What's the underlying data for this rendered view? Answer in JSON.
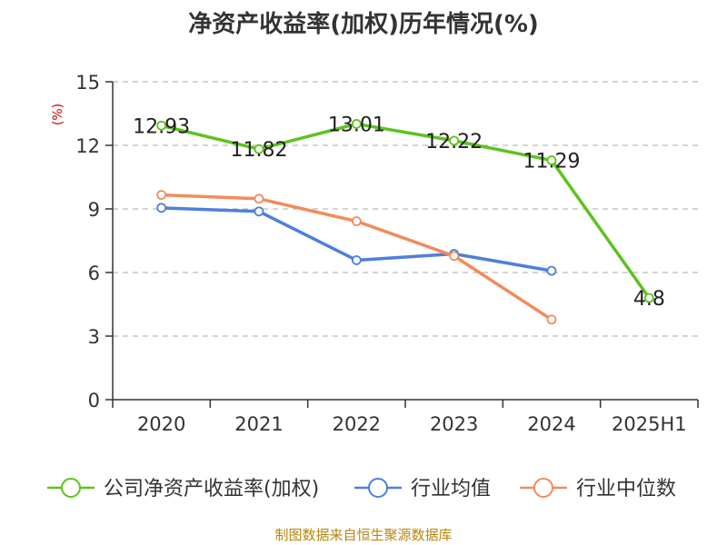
{
  "title": "净资产收益率(加权)历年情况(%)",
  "source_note": "制图数据来自恒生聚源数据库",
  "colors": {
    "roe": "#5cc31f",
    "industry_avg": "#4e7fdb",
    "industry_median": "#f28b5c",
    "unit": "#cc0000",
    "grid": "#bbbbbb"
  },
  "chart_data": {
    "type": "line",
    "title": "净资产收益率(加权)历年情况(%)",
    "ylabel": "(%)",
    "xlabel": "",
    "categories": [
      "2020",
      "2021",
      "2022",
      "2023",
      "2024",
      "2025H1"
    ],
    "ylim": [
      0,
      15
    ],
    "yticks": [
      0,
      3,
      6,
      9,
      12,
      15
    ],
    "grid": true,
    "legend_position": "bottom",
    "series": [
      {
        "name": "公司净资产收益率(加权)",
        "color": "#5cc31f",
        "values": [
          12.93,
          11.82,
          13.01,
          12.22,
          11.29,
          4.8
        ],
        "labels": [
          "12.93",
          "11.82",
          "13.01",
          "12.22",
          "11.29",
          "4.8"
        ]
      },
      {
        "name": "行业均值",
        "color": "#4e7fdb",
        "values": [
          9.05,
          8.88,
          6.58,
          6.88,
          6.08,
          null
        ]
      },
      {
        "name": "行业中位数",
        "color": "#f28b5c",
        "values": [
          9.66,
          9.48,
          8.42,
          6.78,
          3.78,
          null
        ]
      }
    ]
  }
}
